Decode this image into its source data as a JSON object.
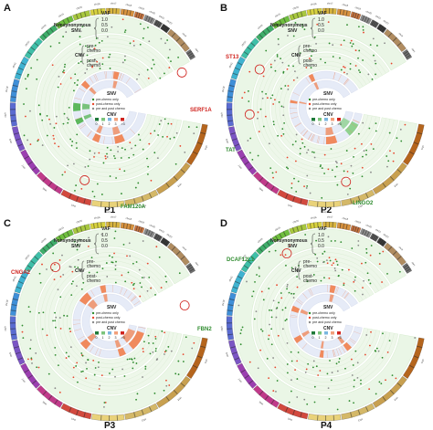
{
  "panels": [
    {
      "letter": "A",
      "title": "P1",
      "genes": [
        {
          "text": "SERF1A",
          "color": "#d0241f"
        },
        {
          "text": "FAM120A",
          "color": "#2e8b2e"
        }
      ],
      "cnvSegs": [
        [
          62,
          80,
          "#f08a5d"
        ],
        [
          110,
          122,
          "#f08a5d"
        ],
        [
          160,
          170,
          "#5cb85c"
        ],
        [
          185,
          200,
          "#5cb85c"
        ],
        [
          235,
          245,
          "#f08a5d"
        ],
        [
          300,
          310,
          "#f08a5d"
        ]
      ]
    },
    {
      "letter": "B",
      "title": "P2",
      "genes": [
        {
          "text": "ST13",
          "color": "#d0241f"
        },
        {
          "text": "TAT",
          "color": "#2e8b2e"
        },
        {
          "text": "LINGO2",
          "color": "#2e8b2e"
        }
      ],
      "cnvSegs": [
        [
          20,
          45,
          "#8fd18f"
        ],
        [
          70,
          90,
          "#f08a5d"
        ],
        [
          200,
          205,
          "#f08a5d"
        ],
        [
          260,
          268,
          "#f08a5d"
        ]
      ]
    },
    {
      "letter": "C",
      "title": "P3",
      "genes": [
        {
          "text": "CNGA2",
          "color": "#d0241f"
        },
        {
          "text": "FBN2",
          "color": "#2e8b2e"
        }
      ],
      "cnvSegs": [
        [
          10,
          45,
          "#f08a5d"
        ],
        [
          60,
          72,
          "#f08a5d"
        ],
        [
          135,
          150,
          "#f08a5d"
        ],
        [
          230,
          250,
          "#f08a5d"
        ],
        [
          275,
          285,
          "#f08a5d"
        ]
      ]
    },
    {
      "letter": "D",
      "title": "P4",
      "genes": [
        {
          "text": "DCAF12L1",
          "color": "#2e8b2e"
        }
      ],
      "cnvSegs": [
        [
          40,
          50,
          "#f08a5d"
        ],
        [
          95,
          102,
          "#f08a5d"
        ],
        [
          150,
          160,
          "#f08a5d"
        ],
        [
          210,
          220,
          "#f08a5d"
        ],
        [
          300,
          310,
          "#f08a5d"
        ]
      ]
    }
  ],
  "track_labels": {
    "vaf": "VAF",
    "vaf_ticks": [
      "1.0",
      "0.5",
      "0.0"
    ],
    "nonsyn": "Nonsynonymous",
    "snv": "SNV",
    "cnv": "CNV",
    "pre_chemo": "pre-\nchemo",
    "post_chemo": "post-\nchemo"
  },
  "legend": {
    "snv_title": "SNV",
    "snv_items": [
      {
        "label": "pre-chemo only",
        "color": "#2e8b2e"
      },
      {
        "label": "post-chemo only",
        "color": "#e8452c"
      },
      {
        "label": "pre and post chemo",
        "color": "#8a8a8a"
      }
    ],
    "cnv_title": "CNV",
    "cnv_items": [
      {
        "label": "0",
        "color": "#1f7a3a"
      },
      {
        "label": "1",
        "color": "#7cc47c"
      },
      {
        "label": "2",
        "color": "#7ab7e0"
      },
      {
        "label": "3",
        "color": "#f2a07b"
      },
      {
        "label": ">3",
        "color": "#d0241f"
      }
    ]
  },
  "chromosomes": [
    "chr1",
    "chr2",
    "chr3",
    "chr4",
    "chr5",
    "chr6",
    "chr7",
    "chr8",
    "chr9",
    "chr10",
    "chr11",
    "chr12",
    "chr13",
    "chr14",
    "chr15",
    "chr16",
    "chr17",
    "chr18",
    "chr19",
    "chr20",
    "chr21",
    "chr22",
    "chrX",
    "chrY"
  ],
  "chrom_colors": [
    "#b5651d",
    "#c8a050",
    "#d4b868",
    "#e9d27a",
    "#d2493e",
    "#c03a8a",
    "#9b3fb0",
    "#7b55c4",
    "#5a6bd0",
    "#3f8fd8",
    "#3fb3d1",
    "#3fbfa8",
    "#3fae6a",
    "#6fbf3f",
    "#a8c83f",
    "#d8d23f",
    "#d8b43f",
    "#d8923f",
    "#c8743f",
    "#8a8a8a",
    "#5a5a5a",
    "#3a3a3a",
    "#b08c60",
    "#707070"
  ]
}
